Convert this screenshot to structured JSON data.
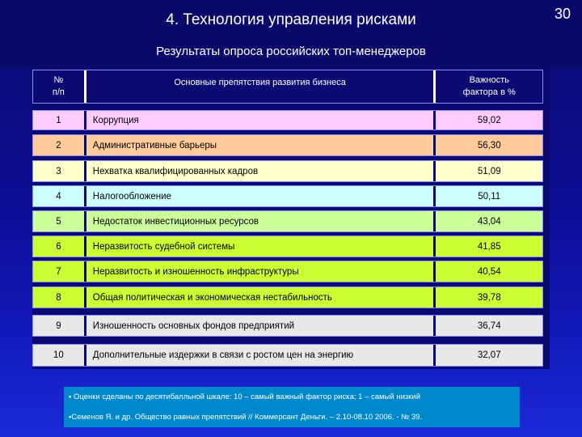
{
  "slide": {
    "title": "4. Технология управления рисками",
    "page_number": "30",
    "subtitle": "Результаты опроса российских топ-менеджеров"
  },
  "table": {
    "headers": [
      "№\nп/п",
      "Основные препятствия развития бизнеса",
      "Важность\nфактора в %"
    ],
    "rows": [
      {
        "num": "1",
        "text": "Коррупция",
        "value": "59,02",
        "color": "#ffccff"
      },
      {
        "num": "2",
        "text": "Административные барьеры",
        "value": "56,30",
        "color": "#ffcc99"
      },
      {
        "num": "3",
        "text": "Нехватка квалифицированных кадров",
        "value": "51,09",
        "color": "#ffffcc"
      },
      {
        "num": "4",
        "text": "Налогообложение",
        "value": "50,11",
        "color": "#ccffff"
      },
      {
        "num": "5",
        "text": "Недостаток инвестиционных ресурсов",
        "value": "43,04",
        "color": "#ccff99"
      },
      {
        "num": "6",
        "text": "Неразвитость судебной системы",
        "value": "41,85",
        "color": "#ccff33"
      },
      {
        "num": "7",
        "text": "Неразвитость и изношенность инфраструктуры",
        "value": "40,54",
        "color": "#ccff33"
      },
      {
        "num": "8",
        "text": "Общая политическая и экономическая нестабильность",
        "value": "39,78",
        "color": "#ccff33"
      },
      {
        "num": "9",
        "text": "Изношенность основных фондов предприятий",
        "value": "36,74",
        "color": "#e8e8e8"
      },
      {
        "num": "10",
        "text": "Дополнительные издержки в связи с ростом цен на энергию",
        "value": "32,07",
        "color": "#e8e8e8"
      }
    ]
  },
  "notes": [
    "▪ Оценки сделаны по десятибалльной шкале: 10 – самый важный фактор риска; 1 – самый низкий",
    "▪Семенов Я. и др. Общество равных препятствий // Коммерсант Деньги. – 2.10-08.10 2006. - № 39."
  ]
}
